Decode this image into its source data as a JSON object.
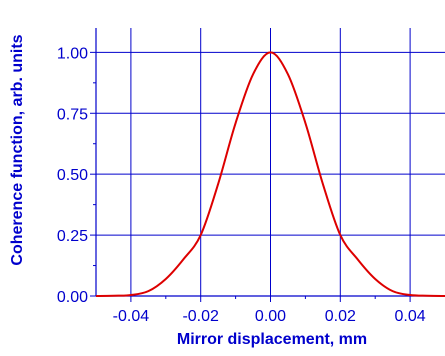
{
  "chart_data": {
    "type": "line",
    "xlabel": "Mirror displacement, mm",
    "ylabel": "Coherence function, arb. units",
    "xlim": [
      -0.05,
      0.05
    ],
    "ylim": [
      0.0,
      1.1
    ],
    "xticks": [
      -0.04,
      -0.02,
      0.0,
      0.02,
      0.04
    ],
    "xtick_labels": [
      "-0.04",
      "-0.02",
      "0.00",
      "0.02",
      "0.04"
    ],
    "yticks": [
      0.0,
      0.25,
      0.5,
      0.75,
      1.0
    ],
    "ytick_labels": [
      "0.00",
      "0.25",
      "0.50",
      "0.75",
      "1.00"
    ],
    "grid": true,
    "series": [
      {
        "color": "#dd0000",
        "x": [
          -0.05,
          -0.045,
          -0.04,
          -0.035,
          -0.03,
          -0.025,
          -0.02,
          -0.015,
          -0.01,
          -0.005,
          0.0,
          0.005,
          0.01,
          0.015,
          0.02,
          0.025,
          0.03,
          0.035,
          0.04,
          0.045,
          0.05
        ],
        "y": [
          0.0,
          0.001,
          0.004,
          0.02,
          0.07,
          0.15,
          0.25,
          0.46,
          0.71,
          0.91,
          1.0,
          0.91,
          0.71,
          0.46,
          0.25,
          0.15,
          0.07,
          0.02,
          0.004,
          0.001,
          0.0
        ]
      }
    ]
  },
  "colors": {
    "grid": "#0000cc",
    "text": "#0000cc",
    "curve": "#dd0000"
  }
}
